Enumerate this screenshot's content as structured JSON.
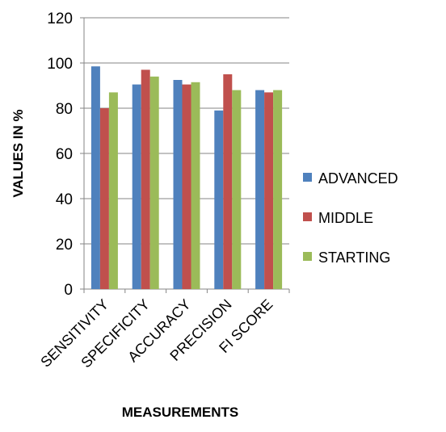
{
  "chart_data": {
    "type": "bar",
    "title": "",
    "xlabel": "MEASUREMENTS",
    "ylabel": "VALUES IN %",
    "categories": [
      "SENSITIVITY",
      "SPECIFICITY",
      "ACCURACY",
      "PRECISION",
      "FI SCORE"
    ],
    "series": [
      {
        "name": "ADVANCED",
        "color": "#4F81BD",
        "values": [
          98.5,
          90.5,
          92.5,
          79,
          88
        ]
      },
      {
        "name": "MIDDLE",
        "color": "#C0504D",
        "values": [
          80,
          97,
          90.5,
          95,
          87
        ]
      },
      {
        "name": "STARTING",
        "color": "#9BBB59",
        "values": [
          87,
          94,
          91.5,
          88,
          88
        ]
      }
    ],
    "ylim": [
      0,
      120
    ],
    "yticks": [
      0,
      20,
      40,
      60,
      80,
      100,
      120
    ],
    "grid": true,
    "legend_position": "right"
  }
}
